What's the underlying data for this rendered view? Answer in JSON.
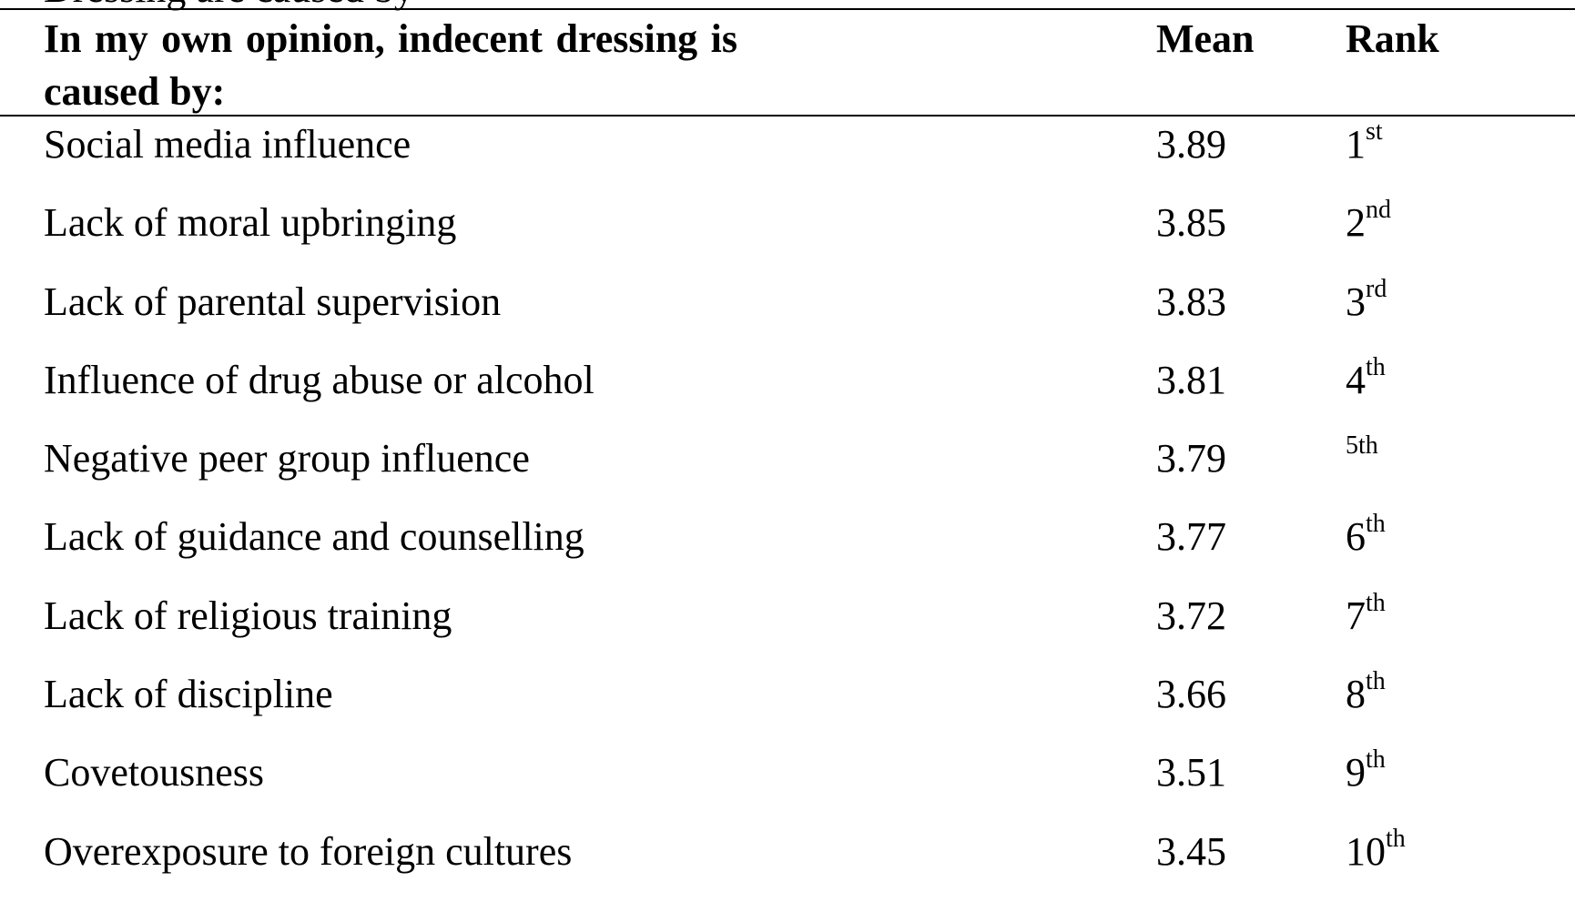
{
  "caption_fragment": "Dressing are caused by",
  "table": {
    "header": {
      "question": "In my own opinion, indecent dressing is caused by:",
      "mean": "Mean",
      "rank": "Rank"
    },
    "rows": [
      {
        "cause": "Social media influence",
        "mean": "3.89",
        "rank_num": "1",
        "rank_suffix": "st"
      },
      {
        "cause": "Lack of moral upbringing",
        "mean": "3.85",
        "rank_num": "2",
        "rank_suffix": "nd"
      },
      {
        "cause": "Lack of parental supervision",
        "mean": "3.83",
        "rank_num": "3",
        "rank_suffix": "rd"
      },
      {
        "cause": "Influence of drug abuse or alcohol",
        "mean": "3.81",
        "rank_num": "4",
        "rank_suffix": "th"
      },
      {
        "cause": "Negative peer group influence",
        "mean": "3.79",
        "rank_small": "5th"
      },
      {
        "cause": "Lack of guidance and counselling",
        "mean": "3.77",
        "rank_num": "6",
        "rank_suffix": "th"
      },
      {
        "cause": "Lack of religious training",
        "mean": "3.72",
        "rank_num": "7",
        "rank_suffix": "th"
      },
      {
        "cause": "Lack of discipline",
        "mean": "3.66",
        "rank_num": "8",
        "rank_suffix": "th"
      },
      {
        "cause": "Covetousness",
        "mean": "3.51",
        "rank_num": "9",
        "rank_suffix": "th"
      },
      {
        "cause": "Overexposure to foreign cultures",
        "mean": "3.45",
        "rank_num": "10",
        "rank_suffix": "th"
      }
    ]
  }
}
